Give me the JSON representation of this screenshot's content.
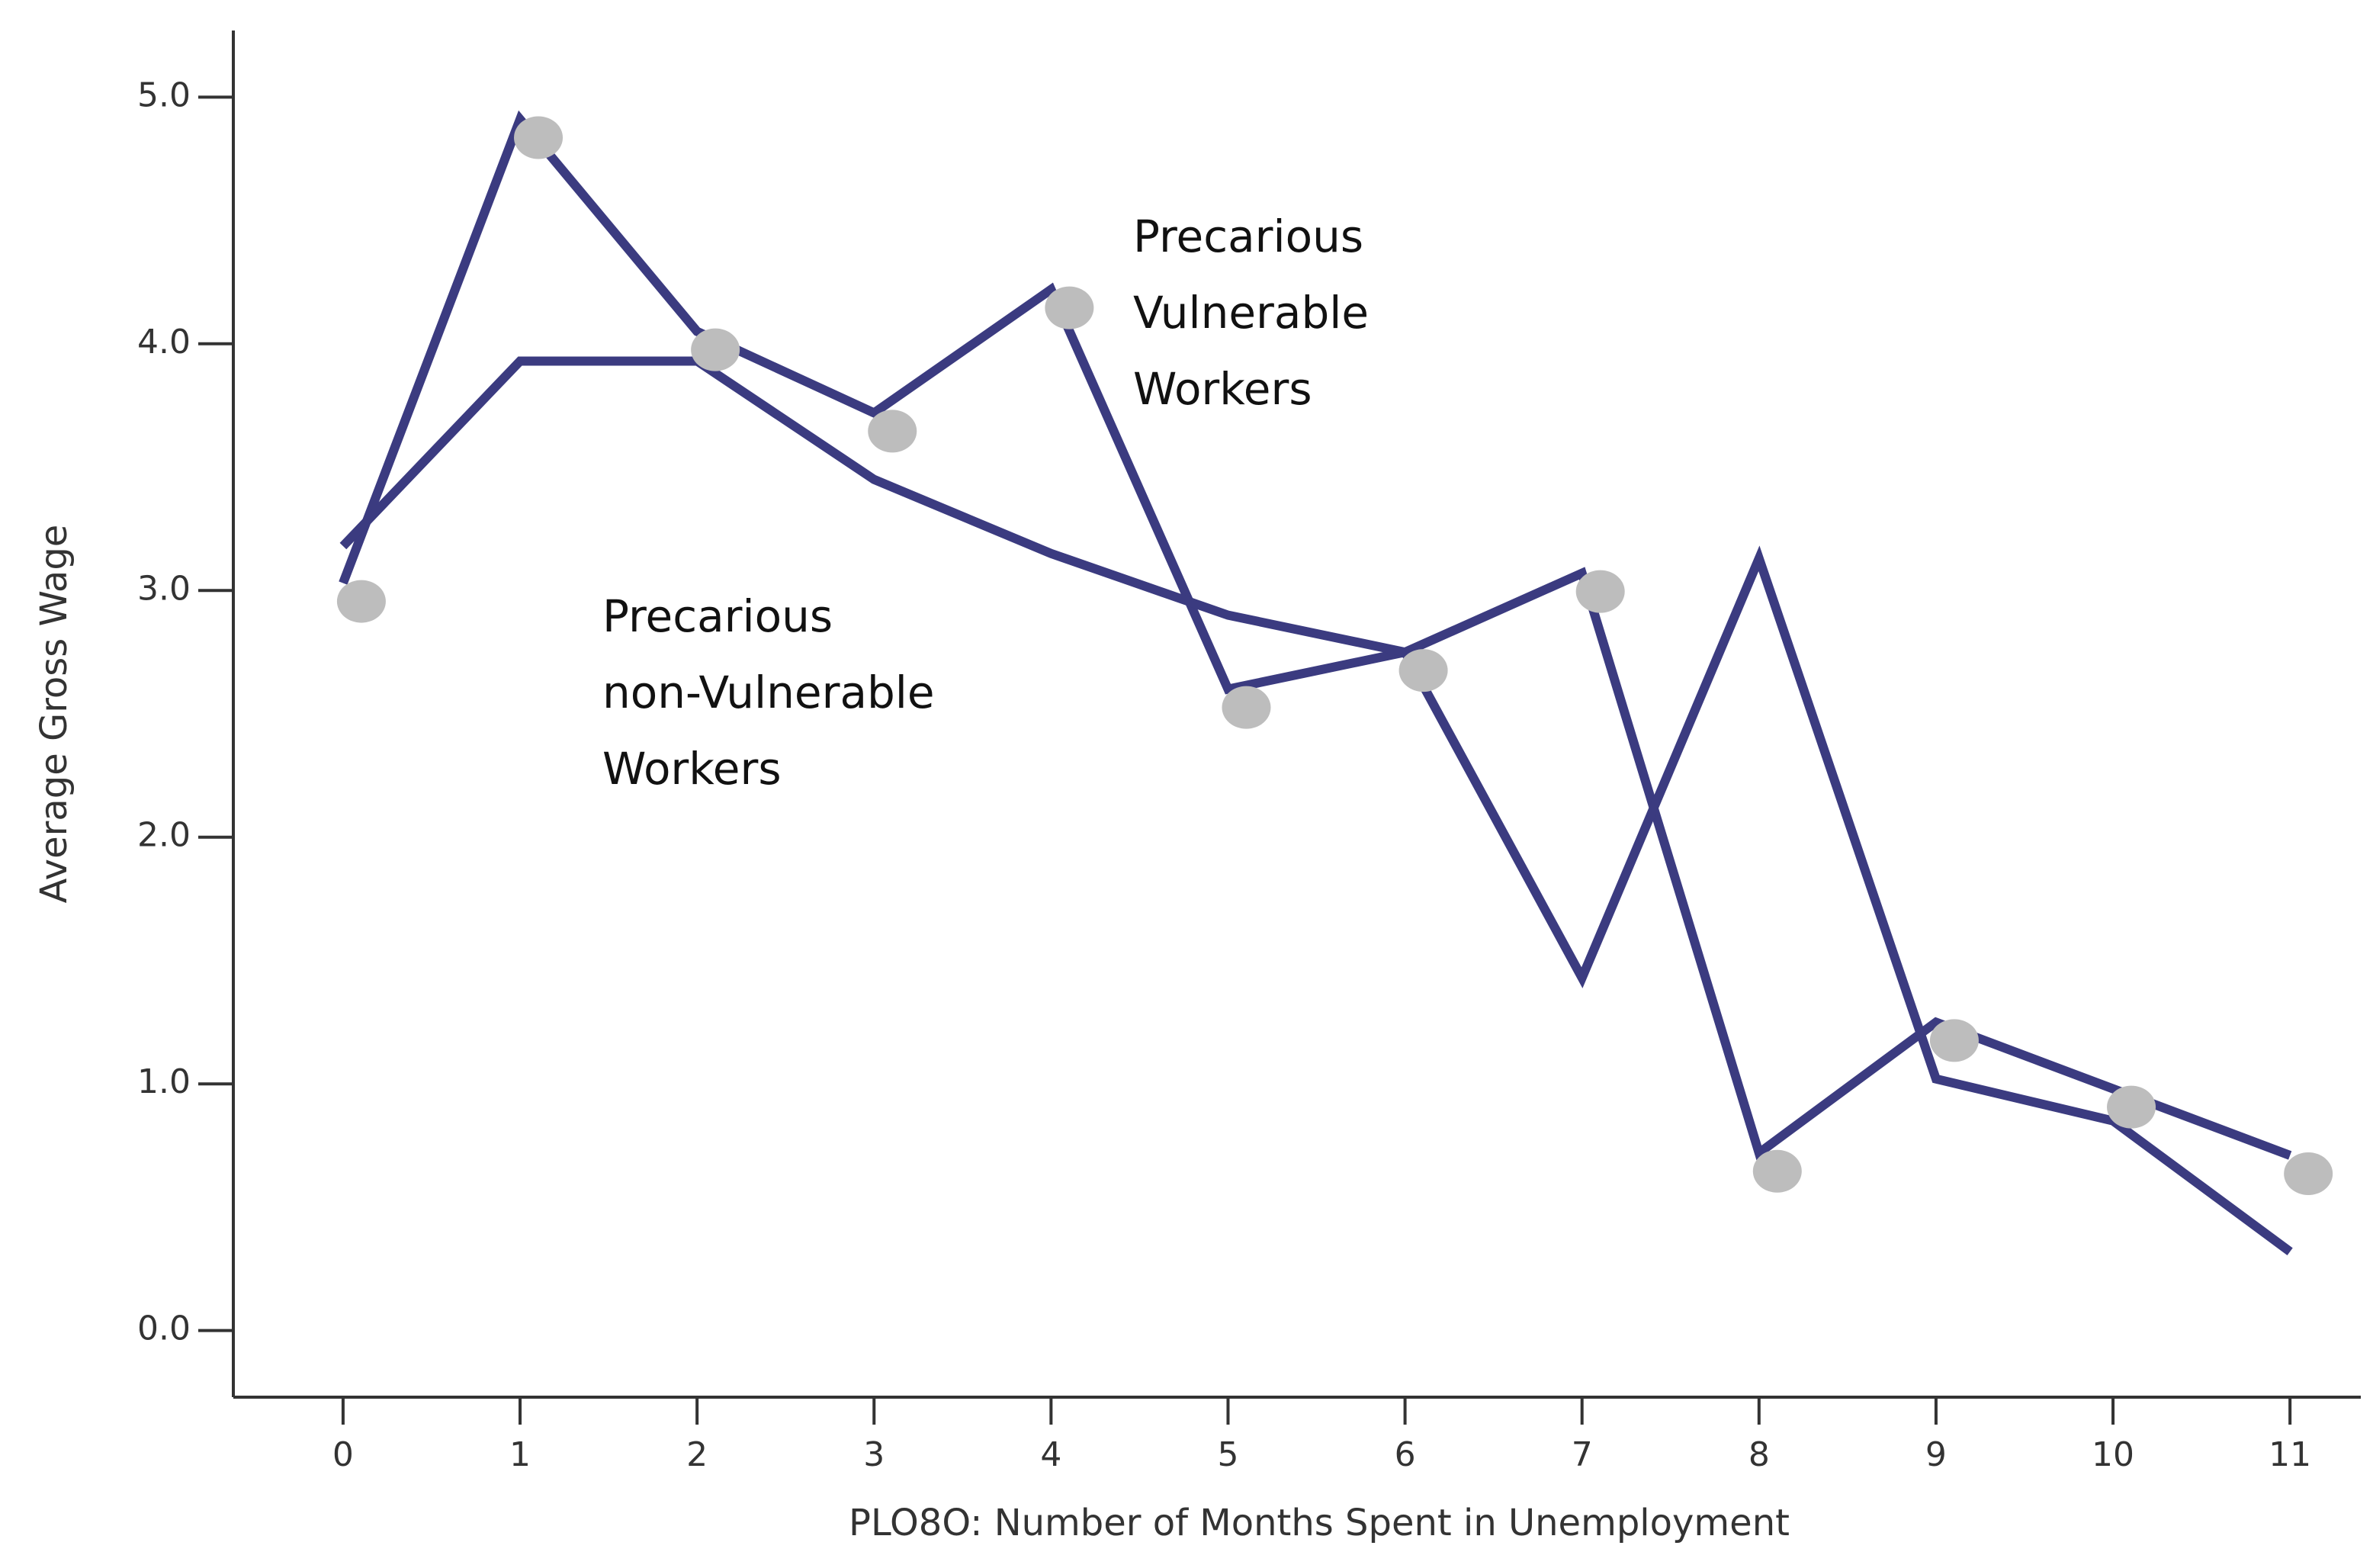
{
  "chart_data": {
    "type": "line",
    "x_label": "PLO8O: Number of Months Spent in Unemployment",
    "y_label": "Average Gross Wage",
    "x": [
      0,
      1,
      2,
      3,
      4,
      5,
      6,
      7,
      8,
      9,
      10,
      11
    ],
    "series": [
      {
        "name": "Precarious Vulnerable Workers",
        "color": "#3b3b80",
        "marker_color": "#bdbdbd",
        "values": [
          3.03,
          4.91,
          4.05,
          3.72,
          4.22,
          2.6,
          2.75,
          3.07,
          0.72,
          1.25,
          0.98,
          0.71
        ]
      },
      {
        "name": "Precarious non-Vulnerable Workers",
        "color": "#3b3b80",
        "values": [
          3.18,
          3.93,
          3.93,
          3.45,
          3.15,
          2.9,
          2.75,
          1.43,
          3.13,
          1.02,
          0.85,
          0.32
        ]
      }
    ],
    "annotations": [
      {
        "lines": [
          "Precarious",
          "Vulnerable",
          "Workers"
        ]
      },
      {
        "lines": [
          "Precarious",
          "non-Vulnerable",
          "Workers"
        ]
      }
    ],
    "xlim": [
      -0.62,
      11.4
    ],
    "xticks": [
      0,
      1,
      2,
      3,
      4,
      5,
      6,
      7,
      8,
      9,
      10,
      11
    ],
    "ylim": [
      -0.27,
      5.27
    ],
    "yticks": [
      {
        "value": 0,
        "label": "0.0"
      },
      {
        "value": 1,
        "label": "1.0"
      },
      {
        "value": 2,
        "label": "2.0"
      },
      {
        "value": 3,
        "label": "3.0"
      },
      {
        "value": 4,
        "label": "4.0"
      },
      {
        "value": 5,
        "label": "5.0"
      }
    ]
  }
}
